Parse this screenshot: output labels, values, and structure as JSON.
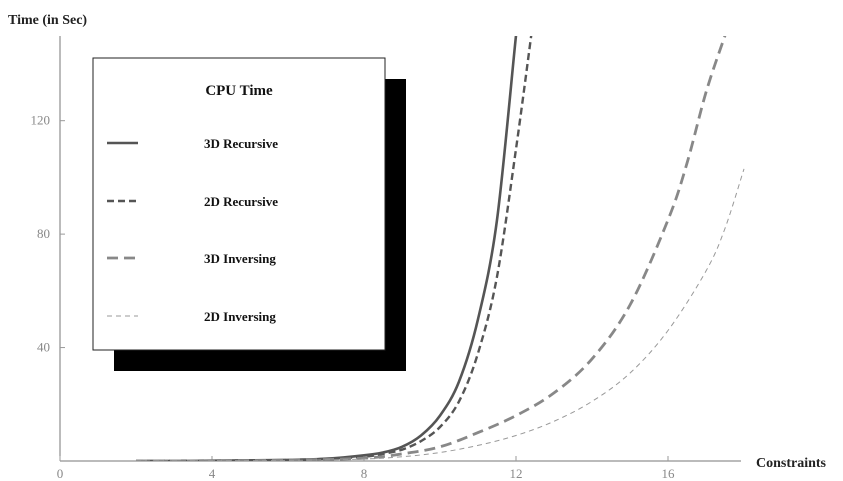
{
  "chart_data": {
    "type": "line",
    "ylabel": "Time (in Sec)",
    "xlabel": "Constraints",
    "xlim": [
      0,
      18.5
    ],
    "ylim": [
      0,
      150
    ],
    "xticks": [
      0,
      4,
      8,
      12,
      16
    ],
    "yticks": [
      40,
      80,
      120
    ],
    "grid": false,
    "legend": {
      "title": "CPU Time",
      "placement": "top-left",
      "shadow": true
    },
    "series": [
      {
        "name": "3D Recursive",
        "style": "solid",
        "color": "#555555",
        "x": [
          2,
          4,
          6,
          7,
          8,
          8.5,
          9,
          9.5,
          10,
          10.5,
          11,
          11.5,
          12,
          12.1
        ],
        "y": [
          0,
          0.1,
          0.4,
          0.8,
          2,
          3,
          5,
          9,
          16,
          28,
          50,
          85,
          150,
          160
        ]
      },
      {
        "name": "2D Recursive",
        "style": "dashed",
        "color": "#555555",
        "x": [
          2,
          4,
          6,
          7,
          8,
          8.5,
          9,
          9.5,
          10,
          10.5,
          11,
          11.5,
          12,
          12.4
        ],
        "y": [
          0,
          0.1,
          0.3,
          0.7,
          1.5,
          2.5,
          4,
          7,
          12,
          21,
          38,
          65,
          110,
          150
        ]
      },
      {
        "name": "3D Inversing",
        "style": "dashed",
        "color": "#888888",
        "x": [
          2,
          4,
          6,
          8,
          9,
          10,
          11,
          12,
          13,
          14,
          15,
          16,
          16.5,
          17,
          17.5
        ],
        "y": [
          0,
          0.1,
          0.3,
          1,
          2.5,
          5,
          10,
          16,
          24,
          36,
          55,
          85,
          105,
          130,
          150
        ]
      },
      {
        "name": "2D Inversing",
        "style": "dashed",
        "color": "#999999",
        "x": [
          2,
          4,
          6,
          8,
          9,
          10,
          11,
          12,
          13,
          14,
          15,
          16,
          17,
          17.5,
          18
        ],
        "y": [
          0,
          0.1,
          0.2,
          0.7,
          1.5,
          3,
          5.5,
          9,
          14,
          21,
          31,
          46,
          67,
          82,
          103
        ]
      }
    ]
  }
}
